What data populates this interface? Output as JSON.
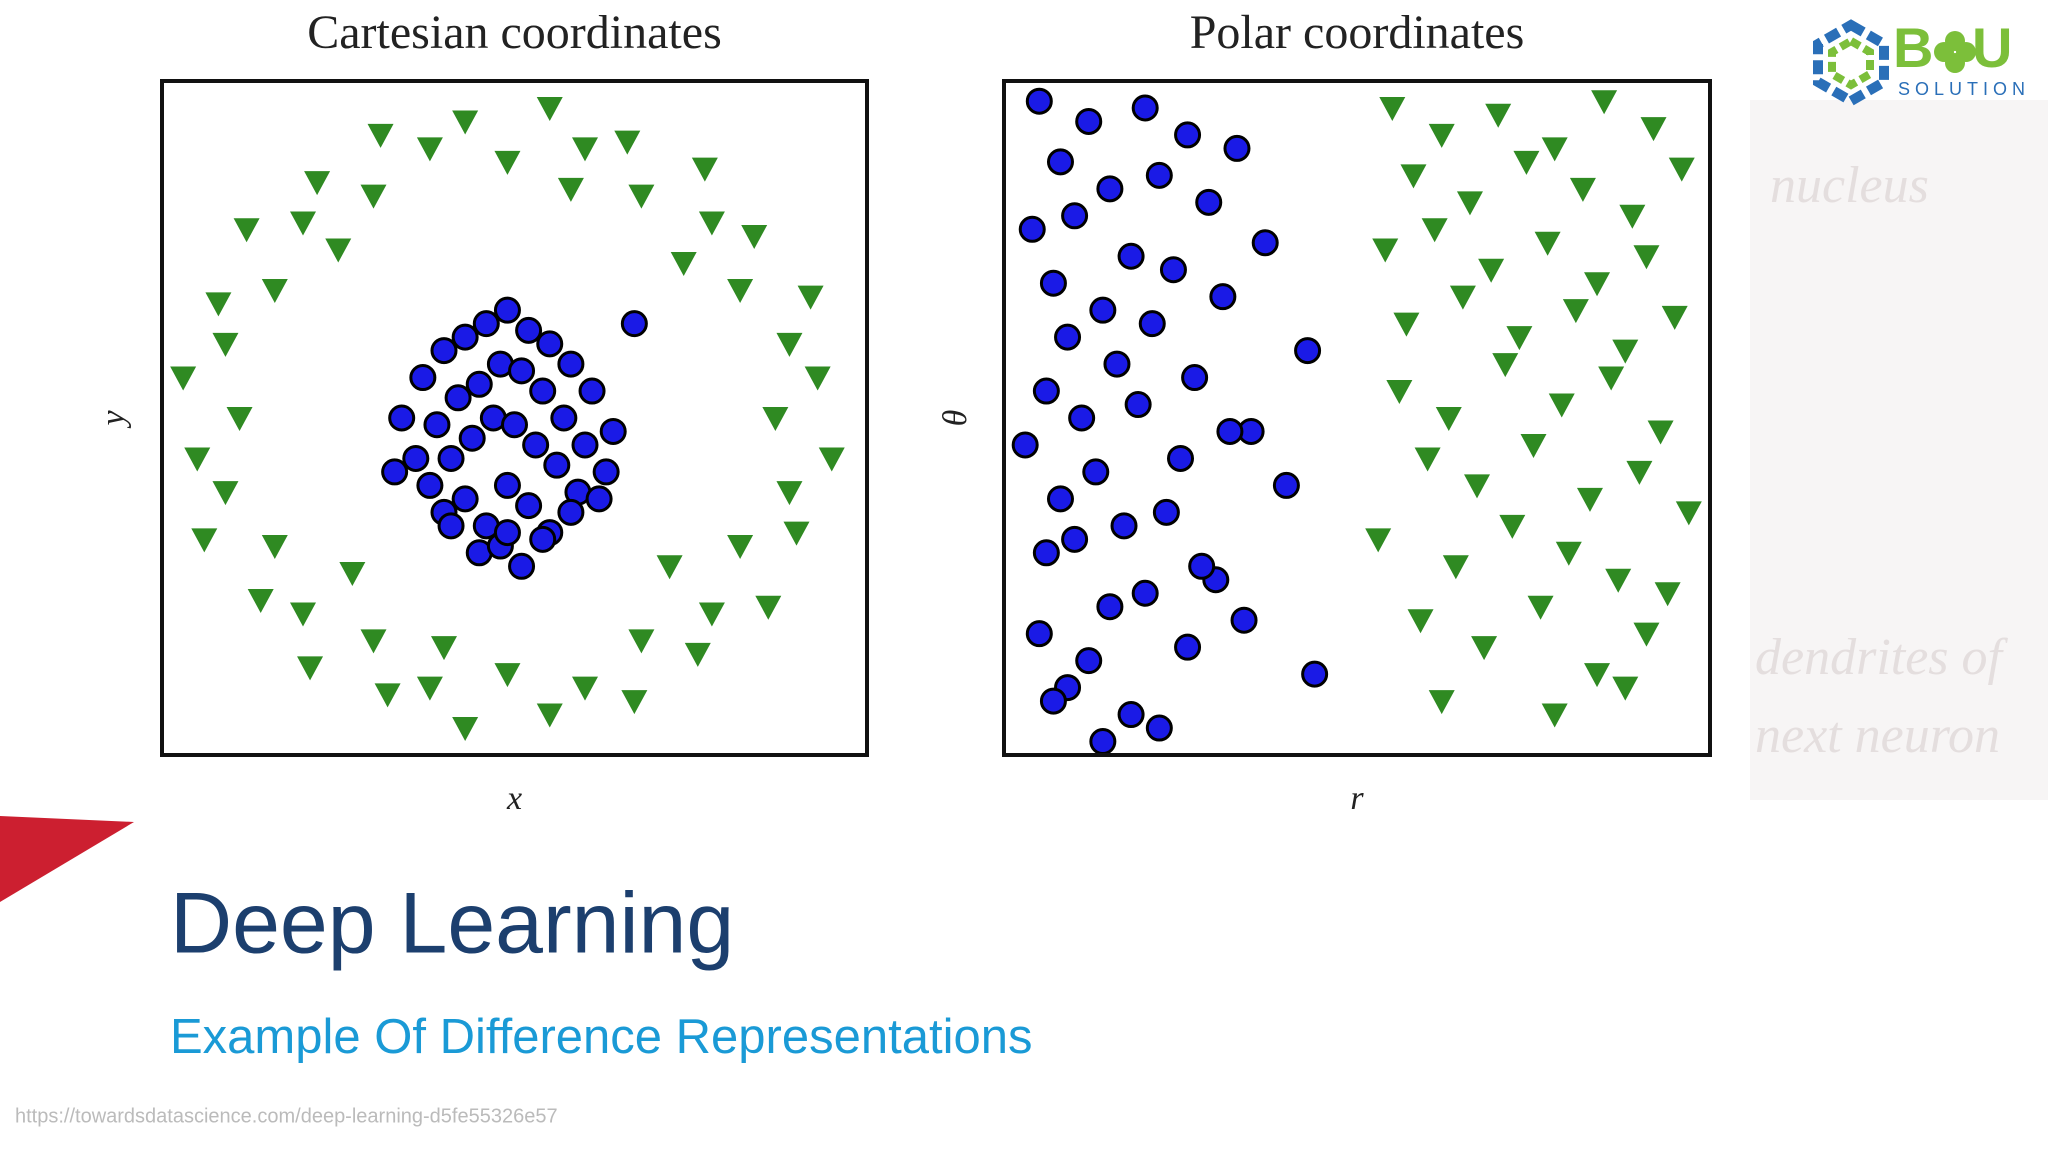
{
  "chart_data": [
    {
      "type": "scatter",
      "title": "Cartesian coordinates",
      "x_label": "x",
      "y_label": "y",
      "xlim": [
        0,
        100
      ],
      "ylim": [
        0,
        100
      ],
      "series": [
        {
          "color": "#1a1ae6",
          "marker": "circle",
          "x": [
            34,
            37,
            40,
            43,
            46,
            49,
            52,
            55,
            58,
            61,
            64,
            36,
            39,
            42,
            45,
            48,
            51,
            54,
            57,
            60,
            63,
            38,
            41,
            44,
            47,
            50,
            53,
            56,
            59,
            62,
            40,
            43,
            46,
            49,
            52,
            55,
            58,
            45,
            48,
            51,
            54,
            33,
            67,
            41,
            49
          ],
          "values": [
            50,
            56,
            60,
            62,
            64,
            66,
            63,
            61,
            58,
            54,
            48,
            44,
            49,
            53,
            55,
            58,
            57,
            54,
            50,
            46,
            42,
            40,
            44,
            47,
            50,
            49,
            46,
            43,
            39,
            38,
            36,
            38,
            34,
            40,
            37,
            33,
            36,
            30,
            31,
            28,
            32,
            42,
            64,
            34,
            33
          ]
        },
        {
          "color": "#2f8a22",
          "marker": "triangle",
          "x": [
            87,
            93,
            89,
            92,
            82,
            84,
            78,
            77,
            68,
            66,
            60,
            55,
            49,
            43,
            38,
            31,
            30,
            22,
            20,
            12,
            16,
            8,
            9,
            3,
            11,
            5,
            9,
            6,
            16,
            14,
            20,
            21,
            30,
            32,
            38,
            43,
            49,
            55,
            60,
            67,
            68,
            76,
            78,
            86,
            82,
            90,
            89,
            95,
            25,
            72,
            74,
            27,
            58,
            40
          ],
          "values": [
            50,
            56,
            61,
            68,
            69,
            77,
            79,
            87,
            83,
            91,
            90,
            96,
            88,
            94,
            90,
            92,
            83,
            85,
            79,
            78,
            69,
            67,
            61,
            56,
            50,
            44,
            39,
            32,
            31,
            23,
            21,
            13,
            17,
            9,
            10,
            4,
            12,
            6,
            10,
            8,
            17,
            15,
            21,
            22,
            31,
            33,
            39,
            44,
            75,
            28,
            73,
            27,
            84,
            16
          ]
        }
      ]
    },
    {
      "type": "scatter",
      "title": "Polar coordinates",
      "x_label": "r",
      "y_label": "θ",
      "xlim": [
        0,
        100
      ],
      "ylim": [
        0,
        100
      ],
      "series": [
        {
          "color": "#1a1ae6",
          "marker": "circle",
          "x": [
            5,
            12,
            20,
            8,
            26,
            15,
            33,
            10,
            22,
            4,
            18,
            29,
            7,
            14,
            37,
            24,
            9,
            31,
            16,
            6,
            21,
            43,
            11,
            27,
            3,
            19,
            35,
            13,
            8,
            25,
            17,
            40,
            6,
            23,
            30,
            10,
            15,
            28,
            5,
            20,
            12,
            34,
            9,
            26,
            18,
            44,
            7,
            22,
            14,
            32
          ],
          "values": [
            97,
            94,
            96,
            88,
            92,
            84,
            90,
            80,
            86,
            78,
            74,
            82,
            70,
            66,
            76,
            72,
            62,
            68,
            58,
            54,
            64,
            60,
            50,
            56,
            46,
            52,
            48,
            42,
            38,
            44,
            34,
            40,
            30,
            36,
            26,
            32,
            22,
            28,
            18,
            24,
            14,
            20,
            10,
            16,
            6,
            12,
            8,
            4,
            2,
            48
          ]
        },
        {
          "color": "#2f8a22",
          "marker": "triangle",
          "x": [
            55,
            62,
            70,
            78,
            85,
            92,
            58,
            66,
            74,
            82,
            89,
            96,
            54,
            61,
            69,
            77,
            84,
            91,
            57,
            65,
            73,
            81,
            88,
            95,
            56,
            63,
            71,
            79,
            86,
            93,
            60,
            67,
            75,
            83,
            90,
            97,
            53,
            64,
            72,
            80,
            87,
            94,
            59,
            68,
            76,
            84,
            91,
            62,
            78,
            88
          ],
          "values": [
            96,
            92,
            95,
            90,
            97,
            93,
            86,
            82,
            88,
            84,
            80,
            87,
            75,
            78,
            72,
            76,
            70,
            74,
            64,
            68,
            62,
            66,
            60,
            65,
            54,
            50,
            58,
            52,
            56,
            48,
            44,
            40,
            46,
            38,
            42,
            36,
            32,
            28,
            34,
            30,
            26,
            24,
            20,
            16,
            22,
            12,
            18,
            8,
            6,
            10
          ]
        }
      ]
    }
  ],
  "slide": {
    "title": "Deep Learning",
    "subtitle": "Example Of Difference Representations",
    "source": "https://towardsdatascience.com/deep-learning-d5fe55326e57"
  },
  "logo": {
    "left": "B",
    "right": "U",
    "tagline": "SOLUTION"
  },
  "background_text": [
    "nucleus",
    "dendrites of",
    "next neuron"
  ]
}
